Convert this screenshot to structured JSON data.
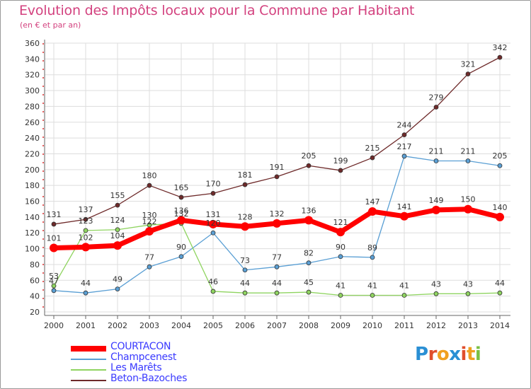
{
  "chart_data": {
    "type": "line",
    "title": "Evolution des Impôts locaux pour la Commune par Habitant",
    "subtitle": "(en € et par an)",
    "categories": [
      "2000",
      "2001",
      "2002",
      "2003",
      "2004",
      "2005",
      "2006",
      "2007",
      "2008",
      "2009",
      "2010",
      "2011",
      "2012",
      "2013",
      "2014"
    ],
    "ylim": [
      20,
      360
    ],
    "yticks": [
      20,
      40,
      60,
      80,
      100,
      120,
      140,
      160,
      180,
      200,
      220,
      240,
      260,
      280,
      300,
      320,
      340,
      360
    ],
    "grid": true,
    "legend_position": "bottom-left",
    "series": [
      {
        "name": "COURTACON",
        "color": "#ff0000",
        "values": [
          101,
          102,
          104,
          122,
          136,
          131,
          128,
          132,
          136,
          121,
          147,
          141,
          149,
          150,
          140
        ],
        "labels": [
          "101",
          "102",
          "104",
          "122",
          "136",
          "131",
          "128",
          "132",
          "136",
          "121",
          "147",
          "141",
          "149",
          "150",
          "140"
        ]
      },
      {
        "name": "Champcenest",
        "color": "#5a9fd4",
        "values": [
          47,
          44,
          49,
          77,
          90,
          120,
          73,
          77,
          82,
          90,
          89,
          217,
          211,
          211,
          205
        ],
        "labels": [
          "47",
          "44",
          "49",
          "77",
          "90",
          "120",
          "73",
          "77",
          "82",
          "90",
          "89",
          "217",
          "211",
          "211",
          "205"
        ]
      },
      {
        "name": "Les Marêts",
        "color": "#8fd460",
        "values": [
          53,
          123,
          124,
          130,
          132,
          46,
          44,
          44,
          45,
          41,
          41,
          41,
          43,
          43,
          44
        ],
        "labels": [
          "53",
          "123",
          "124",
          "130",
          "132",
          "46",
          "44",
          "44",
          "45",
          "41",
          "41",
          "41",
          "43",
          "43",
          "44"
        ]
      },
      {
        "name": "Beton-Bazoches",
        "color": "#6e2a2a",
        "values": [
          131,
          137,
          155,
          180,
          165,
          170,
          181,
          191,
          205,
          199,
          215,
          244,
          279,
          321,
          342
        ],
        "labels": [
          "131",
          "137",
          "155",
          "180",
          "165",
          "170",
          "181",
          "191",
          "205",
          "199",
          "215",
          "244",
          "279",
          "321",
          "342"
        ]
      }
    ]
  },
  "logo": {
    "letters": [
      "P",
      "r",
      "o",
      "x",
      "i",
      "t",
      "i"
    ],
    "colors": [
      "#2a8fd4",
      "#e04e2c",
      "#f0a020",
      "#2a8fd4",
      "#e04e2c",
      "#f0a020",
      "#7ac043"
    ]
  }
}
